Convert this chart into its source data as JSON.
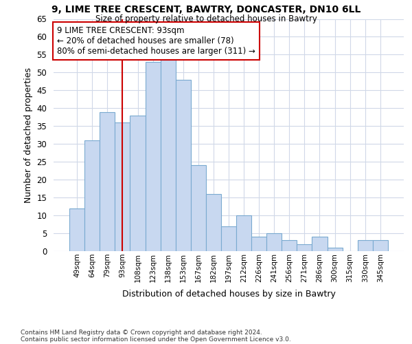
{
  "title1": "9, LIME TREE CRESCENT, BAWTRY, DONCASTER, DN10 6LL",
  "title2": "Size of property relative to detached houses in Bawtry",
  "xlabel": "Distribution of detached houses by size in Bawtry",
  "ylabel": "Number of detached properties",
  "categories": [
    "49sqm",
    "64sqm",
    "79sqm",
    "93sqm",
    "108sqm",
    "123sqm",
    "138sqm",
    "153sqm",
    "167sqm",
    "182sqm",
    "197sqm",
    "212sqm",
    "226sqm",
    "241sqm",
    "256sqm",
    "271sqm",
    "286sqm",
    "300sqm",
    "315sqm",
    "330sqm",
    "345sqm"
  ],
  "values": [
    12,
    31,
    39,
    36,
    38,
    53,
    54,
    48,
    24,
    16,
    7,
    10,
    4,
    5,
    3,
    2,
    4,
    1,
    0,
    3,
    3
  ],
  "bar_color": "#c8d8f0",
  "bar_edge_color": "#7aaad0",
  "vline_x_idx": 3,
  "vline_color": "#cc0000",
  "ylim": [
    0,
    65
  ],
  "yticks": [
    0,
    5,
    10,
    15,
    20,
    25,
    30,
    35,
    40,
    45,
    50,
    55,
    60,
    65
  ],
  "annotation_text": "9 LIME TREE CRESCENT: 93sqm\n← 20% of detached houses are smaller (78)\n80% of semi-detached houses are larger (311) →",
  "annotation_box_facecolor": "#ffffff",
  "annotation_box_edgecolor": "#cc0000",
  "footer1": "Contains HM Land Registry data © Crown copyright and database right 2024.",
  "footer2": "Contains public sector information licensed under the Open Government Licence v3.0.",
  "bg_color": "#ffffff",
  "grid_color": "#d0d8e8"
}
